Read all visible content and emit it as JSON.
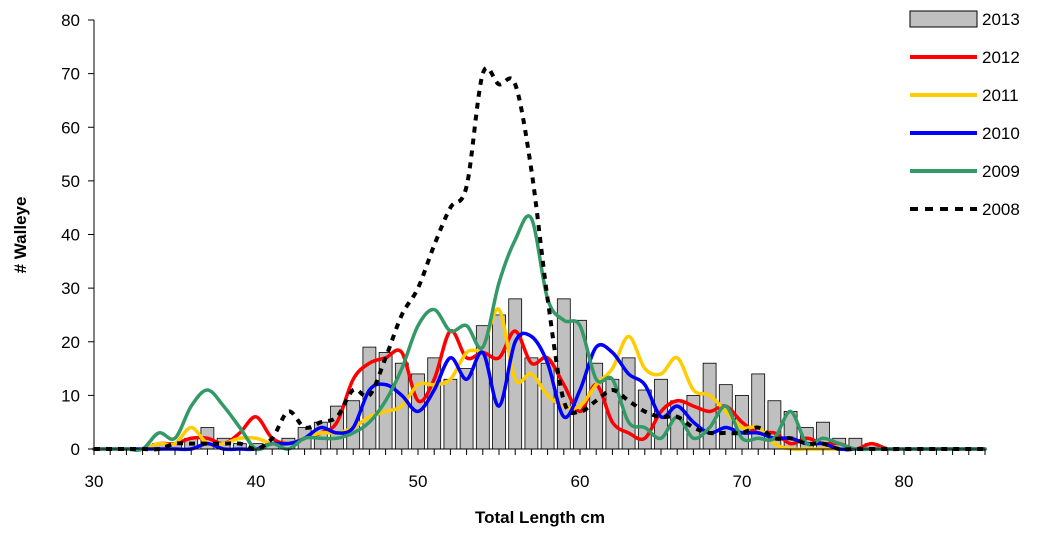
{
  "chart_data": {
    "type": "bar",
    "xlabel": "Total Length cm",
    "ylabel": "# Walleye",
    "xlim": [
      30,
      85
    ],
    "ylim": [
      0,
      80
    ],
    "x_ticks": [
      30,
      40,
      50,
      60,
      70,
      80
    ],
    "y_ticks": [
      0,
      10,
      20,
      30,
      40,
      50,
      60,
      70,
      80
    ],
    "grid": false,
    "legend_position": "top-right",
    "bars": {
      "name": "2013",
      "x": [
        30,
        31,
        32,
        33,
        34,
        35,
        36,
        37,
        38,
        39,
        40,
        41,
        42,
        43,
        44,
        45,
        46,
        47,
        48,
        49,
        50,
        51,
        52,
        53,
        54,
        55,
        56,
        57,
        58,
        59,
        60,
        61,
        62,
        63,
        64,
        65,
        66,
        67,
        68,
        69,
        70,
        71,
        72,
        73,
        74,
        75,
        76,
        77,
        78,
        79,
        80,
        81,
        82,
        83,
        84,
        85
      ],
      "values": [
        0,
        0,
        0,
        0,
        1,
        1,
        2,
        4,
        2,
        1,
        1,
        1,
        2,
        4,
        5,
        8,
        9,
        19,
        18,
        16,
        14,
        17,
        13,
        15,
        23,
        25,
        28,
        17,
        16,
        28,
        24,
        16,
        13,
        17,
        11,
        13,
        9,
        10,
        16,
        12,
        10,
        14,
        9,
        7,
        4,
        5,
        2,
        2,
        1,
        0,
        0,
        0,
        0,
        0,
        0,
        0
      ],
      "color": "#c0c0c0"
    },
    "series": [
      {
        "name": "2012",
        "color": "#ff0000",
        "dash": "solid",
        "x": [
          30,
          31,
          32,
          33,
          34,
          35,
          36,
          37,
          38,
          39,
          40,
          41,
          42,
          43,
          44,
          45,
          46,
          47,
          48,
          49,
          50,
          51,
          52,
          53,
          54,
          55,
          56,
          57,
          58,
          59,
          60,
          61,
          62,
          63,
          64,
          65,
          66,
          67,
          68,
          69,
          70,
          71,
          72,
          73,
          74,
          75,
          76,
          77,
          78,
          79,
          80,
          81,
          82,
          83,
          84,
          85
        ],
        "values": [
          0,
          0,
          0,
          0,
          1,
          1,
          2,
          2,
          1,
          3,
          6,
          2,
          1,
          2,
          3,
          5,
          13,
          16,
          17,
          18,
          9,
          13,
          22,
          17,
          18,
          17,
          22,
          16,
          17,
          12,
          7,
          12,
          5,
          3,
          2,
          7,
          9,
          8,
          7,
          8,
          5,
          3,
          3,
          1,
          2,
          1,
          1,
          0,
          1,
          0,
          0,
          0,
          0,
          0,
          0,
          0
        ]
      },
      {
        "name": "2011",
        "color": "#ffcc00",
        "dash": "solid",
        "x": [
          30,
          31,
          32,
          33,
          34,
          35,
          36,
          37,
          38,
          39,
          40,
          41,
          42,
          43,
          44,
          45,
          46,
          47,
          48,
          49,
          50,
          51,
          52,
          53,
          54,
          55,
          56,
          57,
          58,
          59,
          60,
          61,
          62,
          63,
          64,
          65,
          66,
          67,
          68,
          69,
          70,
          71,
          72,
          73,
          74,
          75,
          76,
          77,
          78,
          79,
          80,
          81,
          82,
          83,
          84,
          85
        ],
        "values": [
          0,
          0,
          0,
          0,
          1,
          1,
          4,
          1,
          1,
          2,
          2,
          1,
          1,
          2,
          3,
          3,
          4,
          6,
          7,
          8,
          12,
          12,
          13,
          18,
          19,
          26,
          13,
          14,
          10,
          8,
          8,
          12,
          15,
          21,
          15,
          14,
          17,
          11,
          10,
          7,
          4,
          4,
          1,
          0,
          0,
          0,
          0,
          0,
          0,
          0,
          0,
          0,
          0,
          0,
          0,
          0
        ]
      },
      {
        "name": "2010",
        "color": "#0000ff",
        "dash": "solid",
        "x": [
          30,
          31,
          32,
          33,
          34,
          35,
          36,
          37,
          38,
          39,
          40,
          41,
          42,
          43,
          44,
          45,
          46,
          47,
          48,
          49,
          50,
          51,
          52,
          53,
          54,
          55,
          56,
          57,
          58,
          59,
          60,
          61,
          62,
          63,
          64,
          65,
          66,
          67,
          68,
          69,
          70,
          71,
          72,
          73,
          74,
          75,
          76,
          77,
          78,
          79,
          80,
          81,
          82,
          83,
          84,
          85
        ],
        "values": [
          0,
          0,
          0,
          0,
          0,
          0,
          0,
          1,
          0,
          0,
          0,
          1,
          1,
          2,
          4,
          3,
          4,
          11,
          12,
          10,
          7,
          11,
          17,
          13,
          18,
          8,
          20,
          21,
          16,
          6,
          11,
          19,
          18,
          14,
          12,
          6,
          8,
          5,
          3,
          4,
          3,
          3,
          2,
          2,
          1,
          1,
          0,
          0,
          0,
          0,
          0,
          0,
          0,
          0,
          0,
          0
        ]
      },
      {
        "name": "2009",
        "color": "#339966",
        "dash": "solid",
        "x": [
          30,
          31,
          32,
          33,
          34,
          35,
          36,
          37,
          38,
          39,
          40,
          41,
          42,
          43,
          44,
          45,
          46,
          47,
          48,
          49,
          50,
          51,
          52,
          53,
          54,
          55,
          56,
          57,
          58,
          59,
          60,
          61,
          62,
          63,
          64,
          65,
          66,
          67,
          68,
          69,
          70,
          71,
          72,
          73,
          74,
          75,
          76,
          77,
          78,
          79,
          80,
          81,
          82,
          83,
          84,
          85
        ],
        "values": [
          0,
          0,
          0,
          0,
          3,
          2,
          8,
          11,
          8,
          4,
          0,
          1,
          0,
          2,
          2,
          2,
          3,
          5,
          9,
          15,
          23,
          26,
          22,
          23,
          19,
          31,
          39,
          43,
          28,
          24,
          23,
          13,
          13,
          5,
          4,
          2,
          6,
          2,
          4,
          8,
          2,
          2,
          2,
          7,
          1,
          2,
          1,
          0,
          0,
          0,
          0,
          0,
          0,
          0,
          0,
          0
        ]
      },
      {
        "name": "2008",
        "color": "#000000",
        "dash": "dashed",
        "x": [
          30,
          31,
          32,
          33,
          34,
          35,
          36,
          37,
          38,
          39,
          40,
          41,
          42,
          43,
          44,
          45,
          46,
          47,
          48,
          49,
          50,
          51,
          52,
          53,
          54,
          55,
          56,
          57,
          58,
          59,
          60,
          61,
          62,
          63,
          64,
          65,
          66,
          67,
          68,
          69,
          70,
          71,
          72,
          73,
          74,
          75,
          76,
          77,
          78,
          79,
          80,
          81,
          82,
          83,
          84,
          85
        ],
        "values": [
          0,
          0,
          0,
          0,
          0,
          1,
          1,
          1,
          1,
          1,
          0,
          2,
          7,
          4,
          5,
          6,
          11,
          10,
          17,
          25,
          30,
          38,
          45,
          49,
          70,
          68,
          68,
          52,
          28,
          9,
          7,
          9,
          11,
          9,
          7,
          6,
          6,
          4,
          3,
          3,
          3,
          4,
          2,
          2,
          1,
          1,
          0,
          0,
          0,
          0,
          0,
          0,
          0,
          0,
          0,
          0
        ]
      }
    ]
  }
}
